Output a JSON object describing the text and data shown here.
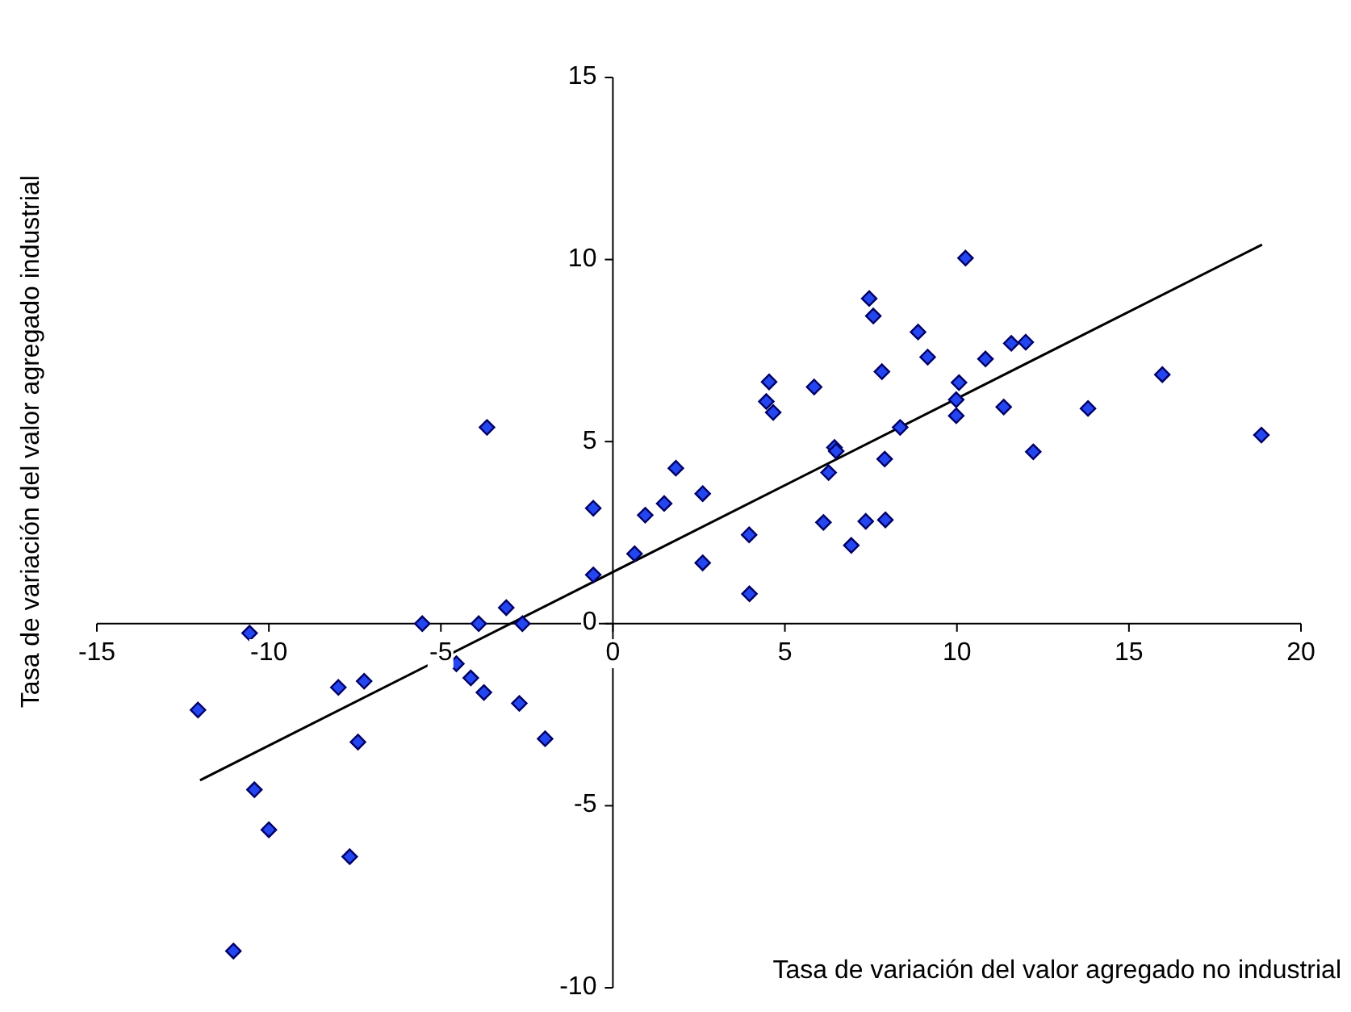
{
  "chart_data": {
    "type": "scatter",
    "xlabel": "Tasa de variación del valor agregado no industrial",
    "ylabel": "Tasa de variación del valor agregado industrial",
    "xlim": [
      -15,
      20
    ],
    "xticks": [
      -15,
      -10,
      -5,
      0,
      5,
      10,
      15,
      20
    ],
    "ylim": [
      -10,
      15
    ],
    "yticks": [
      -10,
      -5,
      0,
      5,
      10,
      15
    ],
    "grid": false,
    "legend": false,
    "marker": "diamond",
    "series": [
      {
        "color": "#2446f0",
        "x": [
          -12.06,
          -10.56,
          -10.42,
          -10.0,
          -11.03,
          -7.98,
          -7.23,
          -7.41,
          -7.65,
          -5.54,
          -4.55,
          -3.9,
          -4.13,
          -3.75,
          -3.66,
          -3.1,
          -2.72,
          -2.63,
          -1.97,
          -0.57,
          -0.57,
          0.63,
          0.94,
          1.49,
          1.83,
          2.61,
          2.61,
          3.96,
          3.97,
          4.54,
          4.46,
          4.66,
          5.85,
          6.12,
          6.27,
          6.44,
          6.49,
          6.93,
          7.35,
          7.45,
          7.57,
          7.82,
          7.9,
          7.92,
          8.35,
          8.87,
          9.15,
          9.98,
          9.98,
          10.06,
          10.25,
          10.83,
          11.36,
          11.58,
          12.0,
          12.22,
          13.81,
          15.97,
          18.85
        ],
        "values": [
          -2.37,
          -0.26,
          -4.56,
          -5.66,
          -8.99,
          -1.75,
          -1.58,
          -3.25,
          -6.4,
          0,
          -1.1,
          0,
          -1.49,
          -1.89,
          5.39,
          0.44,
          -2.19,
          0,
          -3.16,
          1.34,
          3.17,
          1.92,
          2.98,
          3.3,
          4.27,
          3.57,
          1.67,
          2.44,
          0.82,
          6.64,
          6.1,
          5.8,
          6.5,
          2.78,
          4.15,
          4.84,
          4.74,
          2.15,
          2.81,
          8.93,
          8.45,
          6.92,
          4.52,
          2.85,
          5.39,
          8.01,
          7.32,
          6.15,
          5.71,
          6.62,
          10.04,
          7.27,
          5.95,
          7.7,
          7.73,
          4.72,
          5.91,
          6.84,
          5.18
        ]
      },
      {
        "type": "line",
        "color": "#000000",
        "marker": "none",
        "x": [
          -12,
          18.87
        ],
        "values": [
          -4.3,
          10.41
        ]
      }
    ]
  }
}
